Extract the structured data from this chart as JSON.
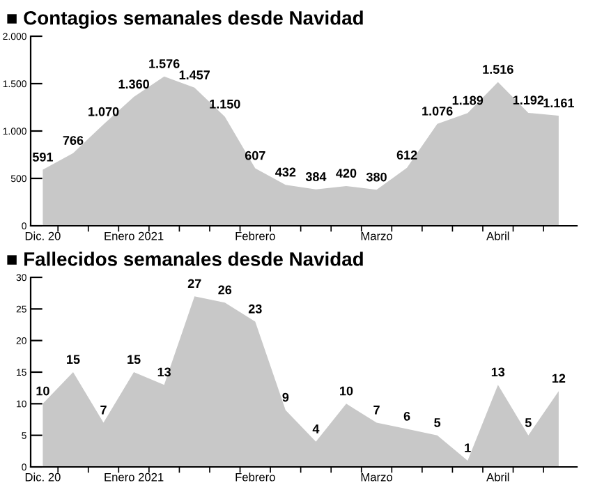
{
  "chart_data": [
    {
      "type": "area",
      "title": "■ Contagios semanales desde Navidad",
      "categories": [
        "Dic. 20",
        null,
        null,
        "Enero 2021",
        null,
        null,
        null,
        "Febrero",
        null,
        null,
        null,
        "Marzo",
        null,
        null,
        null,
        "Abril",
        null,
        null
      ],
      "series": [
        {
          "color": "#c8c8c8",
          "values": [
            591,
            766,
            1070,
            1360,
            1576,
            1457,
            1150,
            607,
            432,
            384,
            420,
            380,
            612,
            1076,
            1189,
            1516,
            1192,
            1161
          ],
          "value_labels": [
            "591",
            "766",
            "1.070",
            "1.360",
            "1.576",
            "1.457",
            "1.150",
            "607",
            "432",
            "384",
            "420",
            "380",
            "612",
            "1.076",
            "1.189",
            "1.516",
            "1.192",
            "1.161"
          ]
        }
      ],
      "ylim": [
        0,
        2000
      ],
      "yticks": [
        0,
        500,
        {
          "value": 1000,
          "label": "1.000"
        },
        {
          "value": 1500,
          "label": "1.500"
        },
        {
          "value": 2000,
          "label": "2.000"
        }
      ],
      "grid": false
    },
    {
      "type": "area",
      "title": "■ Fallecidos semanales desde Navidad",
      "categories": [
        "Dic. 20",
        null,
        null,
        "Enero 2021",
        null,
        null,
        null,
        "Febrero",
        null,
        null,
        null,
        "Marzo",
        null,
        null,
        null,
        "Abril",
        null,
        null
      ],
      "series": [
        {
          "color": "#c8c8c8",
          "values": [
            10,
            15,
            7,
            15,
            13,
            27,
            26,
            23,
            9,
            4,
            10,
            7,
            6,
            5,
            1,
            13,
            5,
            12
          ]
        }
      ],
      "data_labels": true,
      "ylim": [
        0,
        30
      ],
      "yticks": [
        0,
        5,
        10,
        15,
        20,
        25,
        30
      ],
      "grid": false
    }
  ]
}
